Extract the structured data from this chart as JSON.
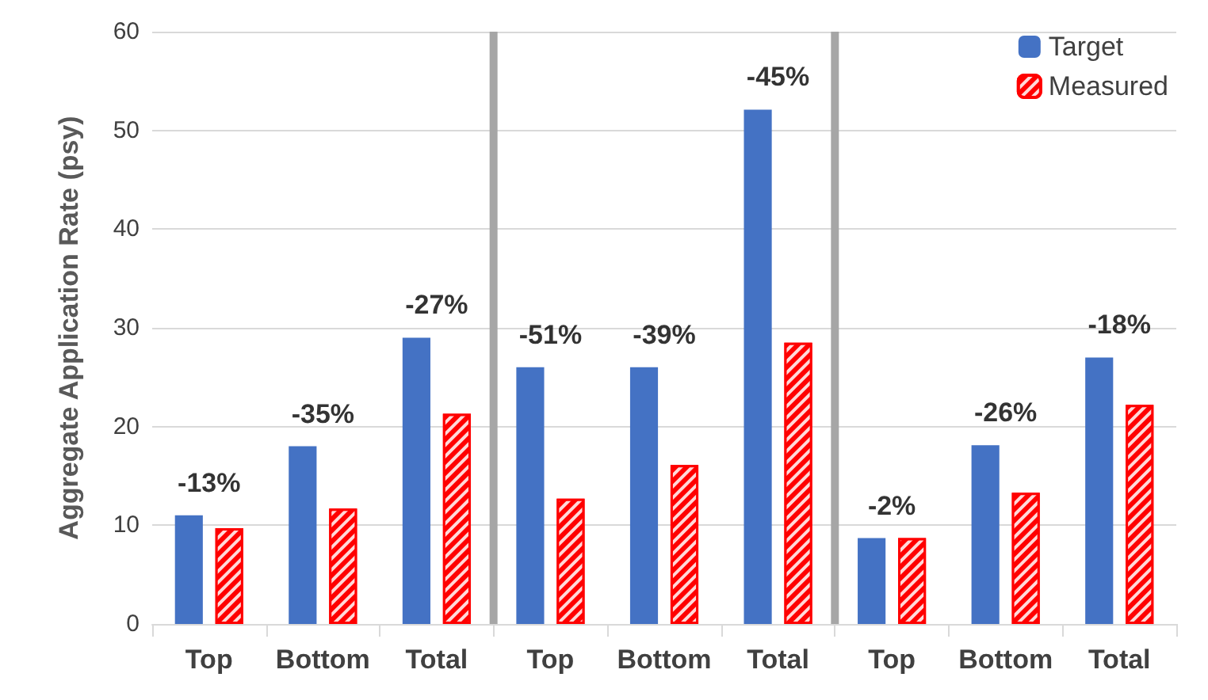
{
  "chart_data": {
    "type": "bar",
    "ylabel": "Aggregate Application Rate (psy)",
    "categories": [
      "Top",
      "Bottom",
      "Total",
      "Top",
      "Bottom",
      "Total",
      "Top",
      "Bottom",
      "Total"
    ],
    "series": [
      {
        "name": "Target",
        "color": "#4472c4",
        "values": [
          11,
          18,
          29,
          26,
          26,
          52.1,
          8.7,
          18.1,
          27
        ]
      },
      {
        "name": "Measured",
        "color": "#ff0000",
        "values": [
          9.7,
          11.7,
          21.3,
          12.7,
          16.1,
          28.5,
          8.7,
          13.3,
          22.2
        ]
      }
    ],
    "annotations": [
      "-13%",
      "-35%",
      "-27%",
      "-51%",
      "-39%",
      "-45%",
      "-2%",
      "-26%",
      "-18%"
    ],
    "ylim": [
      0,
      60
    ],
    "yticks": [
      0,
      10,
      20,
      30,
      40,
      50,
      60
    ],
    "grid": "y",
    "legend": "top right"
  }
}
